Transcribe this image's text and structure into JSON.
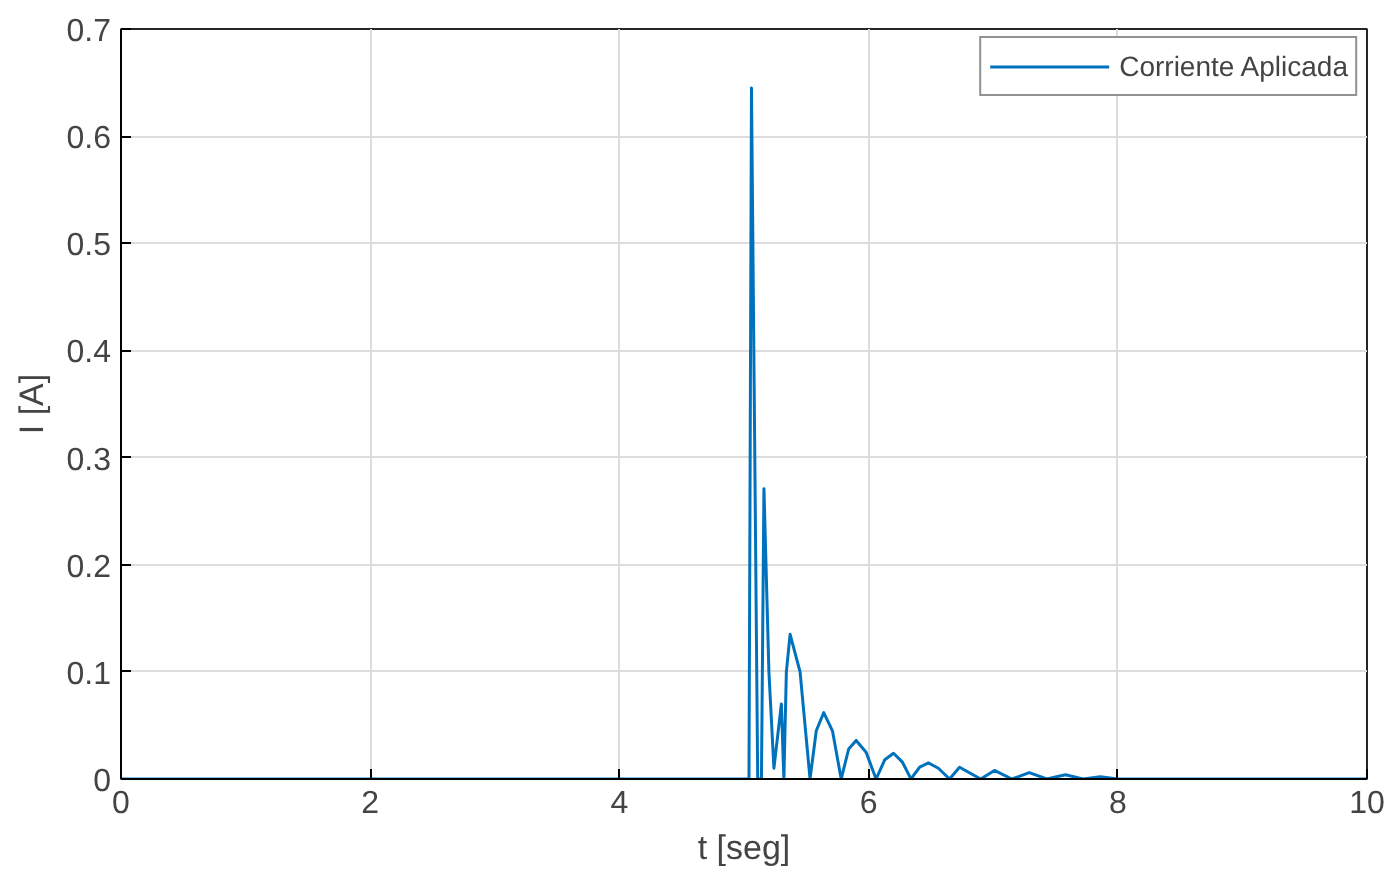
{
  "chart_data": {
    "type": "line",
    "xlabel": "t [seg]",
    "ylabel": "I [A]",
    "xlim": [
      0,
      10
    ],
    "ylim": [
      0,
      0.7
    ],
    "xticks": [
      0,
      2,
      4,
      6,
      8,
      10
    ],
    "yticks": [
      0,
      0.1,
      0.2,
      0.3,
      0.4,
      0.5,
      0.6,
      0.7
    ],
    "grid": true,
    "legend": "top right",
    "series": [
      {
        "name": "Corriente Aplicada",
        "color": "#0072bd",
        "x": [
          0,
          5.04,
          5.06,
          5.11,
          5.14,
          5.16,
          5.2,
          5.24,
          5.27,
          5.3,
          5.32,
          5.34,
          5.37,
          5.45,
          5.53,
          5.58,
          5.64,
          5.71,
          5.78,
          5.84,
          5.9,
          5.98,
          6.06,
          6.13,
          6.2,
          6.27,
          6.34,
          6.41,
          6.48,
          6.56,
          6.65,
          6.73,
          6.9,
          7.01,
          7.15,
          7.29,
          7.43,
          7.58,
          7.72,
          7.86,
          8.0,
          10
        ],
        "values": [
          0,
          0,
          0.645,
          0,
          0,
          0.271,
          0.1,
          0.01,
          0.04,
          0.07,
          0,
          0.1,
          0.135,
          0.1,
          0,
          0.045,
          0.062,
          0.045,
          0,
          0.028,
          0.036,
          0.025,
          0,
          0.018,
          0.024,
          0.016,
          0,
          0.011,
          0.015,
          0.01,
          0,
          0.011,
          0,
          0.008,
          0,
          0.006,
          0,
          0.004,
          0,
          0.002,
          0,
          0
        ]
      }
    ]
  }
}
